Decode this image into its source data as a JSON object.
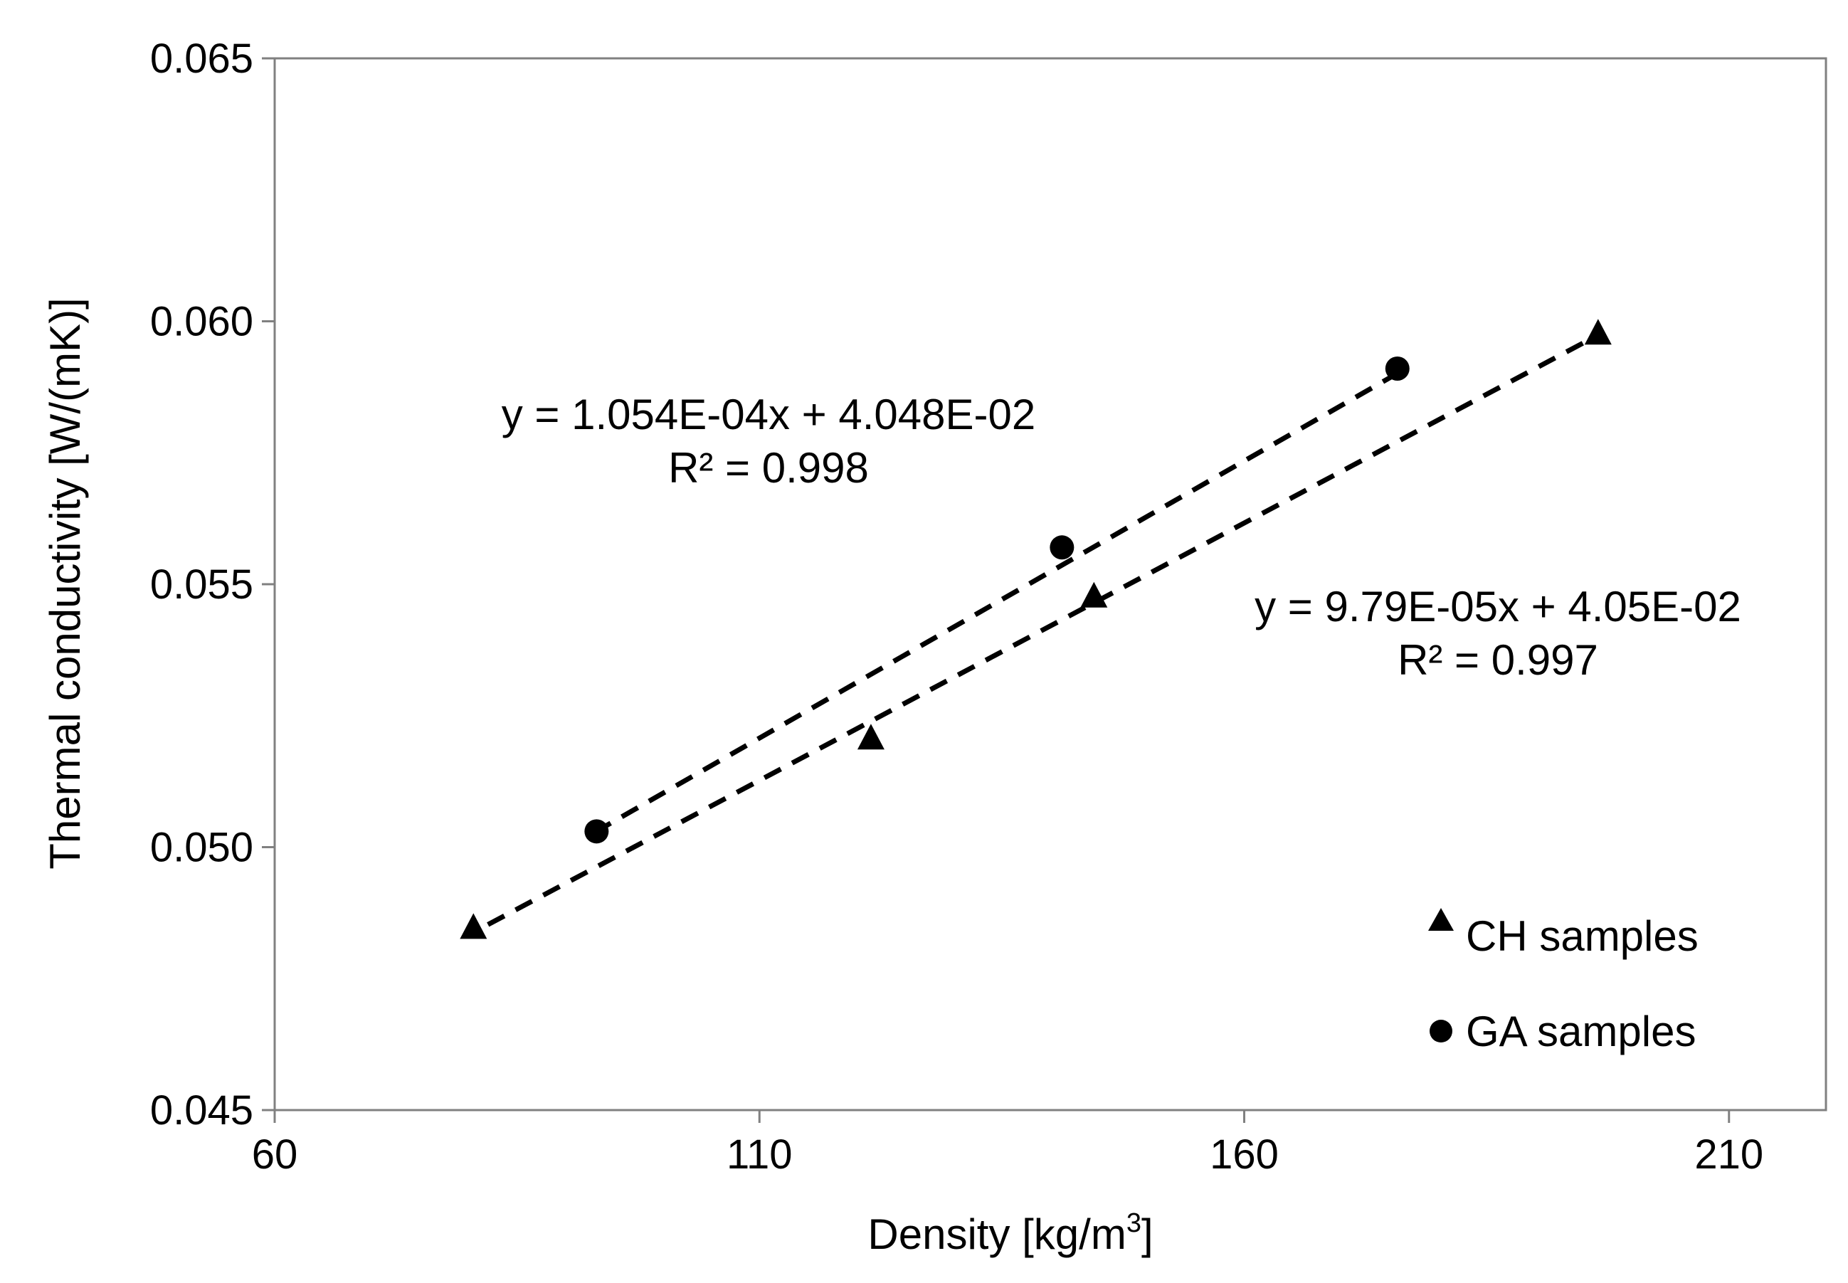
{
  "chart_data": {
    "type": "scatter",
    "xlabel": "Density [kg/m",
    "xlabel_sup": "3",
    "xlabel_close": "]",
    "ylabel": "Thermal conductivity [W/(mK)]",
    "xlim": [
      60,
      220
    ],
    "ylim": [
      0.045,
      0.065
    ],
    "x_ticks": [
      60,
      110,
      160,
      210
    ],
    "x_tick_labels": [
      "60",
      "110",
      "160",
      "210"
    ],
    "y_ticks": [
      0.045,
      0.05,
      0.055,
      0.06,
      0.065
    ],
    "y_tick_labels": [
      "0.045",
      "0.050",
      "0.055",
      "0.060",
      "0.065"
    ],
    "grid": false,
    "legend_position": "bottom-right",
    "series": [
      {
        "name": "CH samples",
        "marker": "triangle",
        "x": [
          80.5,
          121.5,
          144.5,
          196.5
        ],
        "y": [
          0.0485,
          0.0521,
          0.0548,
          0.0598
        ],
        "trend_slope": 9.79e-05,
        "trend_intercept": 0.0405,
        "trend_x_range": [
          82,
          196
        ],
        "equation": "y = 9.79E-05x + 4.05E-02",
        "r_squared": "R² = 0.997"
      },
      {
        "name": "GA samples",
        "marker": "circle",
        "x": [
          93.2,
          141.2,
          175.8
        ],
        "y": [
          0.0503,
          0.0557,
          0.0591
        ],
        "trend_slope": 0.0001054,
        "trend_intercept": 0.04048,
        "trend_x_range": [
          93,
          176
        ],
        "equation": "y = 1.054E-04x + 4.048E-02",
        "r_squared": "R² = 0.998"
      }
    ]
  }
}
